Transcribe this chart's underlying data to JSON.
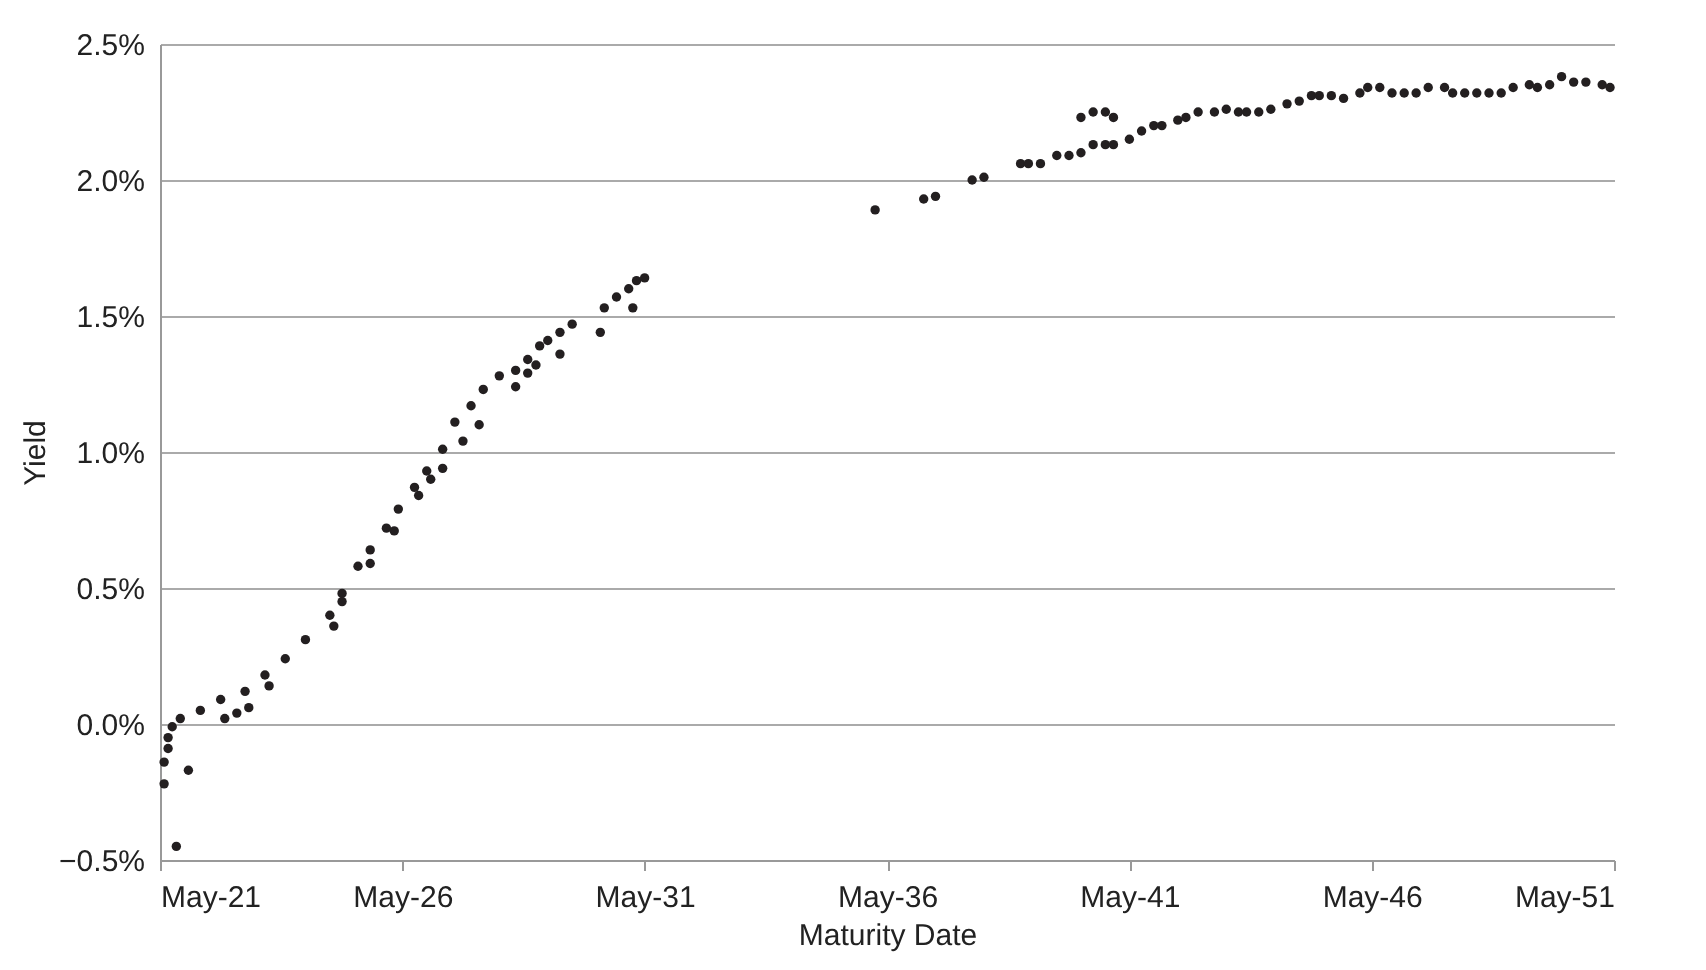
{
  "chart_data": {
    "type": "scatter",
    "xlabel": "Maturity Date",
    "ylabel": "Yield",
    "x": [
      "2021-06",
      "2021-06",
      "2021-07",
      "2021-07",
      "2021-08",
      "2021-10",
      "2022-03",
      "2022-08",
      "2023-02",
      "2023-07",
      "2023-12",
      "2024-05",
      "2024-11",
      "2025-02",
      "2025-06",
      "2025-09",
      "2026-01",
      "2026-04",
      "2026-08",
      "2026-11",
      "2027-03",
      "2027-06",
      "2027-10",
      "2028-01",
      "2028-05",
      "2021-12",
      "2022-09",
      "2022-12",
      "2023-03",
      "2023-08",
      "2024-12",
      "2025-02",
      "2025-09",
      "2026-03",
      "2026-09",
      "2026-12",
      "2027-03",
      "2027-08",
      "2027-12",
      "2028-09",
      "2028-09",
      "2028-12",
      "2028-12",
      "2029-03",
      "2029-02",
      "2029-05",
      "2029-08",
      "2029-08",
      "2029-11",
      "2030-06",
      "2030-07",
      "2030-10",
      "2031-01",
      "2031-03",
      "2031-05",
      "2031-02",
      "2021-09",
      "2036-02",
      "2037-02",
      "2037-05",
      "2038-02",
      "2038-05",
      "2039-02",
      "2039-04",
      "2039-07",
      "2039-11",
      "2040-02",
      "2040-05",
      "2040-08",
      "2040-11",
      "2041-01",
      "2040-05",
      "2040-08",
      "2040-11",
      "2041-01",
      "2041-05",
      "2041-08",
      "2041-11",
      "2042-01",
      "2042-05",
      "2042-07",
      "2042-10",
      "2043-02",
      "2043-05",
      "2043-08",
      "2043-10",
      "2044-01",
      "2044-04",
      "2044-08",
      "2044-11",
      "2045-02",
      "2045-04",
      "2045-07",
      "2045-10",
      "2046-02",
      "2046-04",
      "2046-07",
      "2046-10",
      "2047-01",
      "2047-04",
      "2047-07",
      "2047-11",
      "2048-01",
      "2048-04",
      "2048-07",
      "2048-10",
      "2049-01",
      "2049-04",
      "2049-08",
      "2049-10",
      "2050-01",
      "2050-04",
      "2050-07",
      "2050-10",
      "2051-02",
      "2051-04"
    ],
    "series": [
      {
        "color": "#231f20",
        "values": [
          -0.22,
          -0.14,
          -0.09,
          -0.05,
          -0.01,
          0.02,
          0.05,
          0.09,
          0.12,
          0.18,
          0.24,
          0.31,
          0.4,
          0.48,
          0.58,
          0.64,
          0.72,
          0.79,
          0.87,
          0.93,
          1.01,
          1.11,
          1.17,
          1.23,
          1.28,
          -0.17,
          0.02,
          0.04,
          0.06,
          0.14,
          0.36,
          0.45,
          0.59,
          0.71,
          0.84,
          0.9,
          0.94,
          1.04,
          1.1,
          1.24,
          1.3,
          1.34,
          1.29,
          1.39,
          1.32,
          1.41,
          1.44,
          1.36,
          1.47,
          1.44,
          1.53,
          1.57,
          1.6,
          1.63,
          1.64,
          1.53,
          -0.45,
          1.89,
          1.93,
          1.94,
          2.0,
          2.01,
          2.06,
          2.06,
          2.06,
          2.09,
          2.09,
          2.1,
          2.13,
          2.13,
          2.13,
          2.23,
          2.25,
          2.25,
          2.23,
          2.15,
          2.18,
          2.2,
          2.2,
          2.22,
          2.23,
          2.25,
          2.25,
          2.26,
          2.25,
          2.25,
          2.25,
          2.26,
          2.28,
          2.29,
          2.31,
          2.31,
          2.31,
          2.3,
          2.32,
          2.34,
          2.34,
          2.32,
          2.32,
          2.32,
          2.34,
          2.34,
          2.32,
          2.32,
          2.32,
          2.32,
          2.32,
          2.34,
          2.35,
          2.34,
          2.35,
          2.38,
          2.36,
          2.36,
          2.35,
          2.34
        ]
      }
    ],
    "xlim": [
      "2021-05",
      "2051-05"
    ],
    "xticks": [
      {
        "value": "2021-05",
        "label": "May-21"
      },
      {
        "value": "2026-05",
        "label": "May-26"
      },
      {
        "value": "2031-05",
        "label": "May-31"
      },
      {
        "value": "2036-05",
        "label": "May-36"
      },
      {
        "value": "2041-05",
        "label": "May-41"
      },
      {
        "value": "2046-05",
        "label": "May-46"
      },
      {
        "value": "2051-05",
        "label": "May-51"
      }
    ],
    "ylim": [
      -0.5,
      2.5
    ],
    "yticks": [
      {
        "value": -0.5,
        "label": "−0.5%"
      },
      {
        "value": 0,
        "label": "0.0%"
      },
      {
        "value": 0.5,
        "label": "0.5%"
      },
      {
        "value": 1,
        "label": "1.0%"
      },
      {
        "value": 1.5,
        "label": "1.5%"
      },
      {
        "value": 2,
        "label": "2.0%"
      },
      {
        "value": 2.5,
        "label": "2.5%"
      }
    ],
    "grid": "y",
    "marker": "circle"
  }
}
